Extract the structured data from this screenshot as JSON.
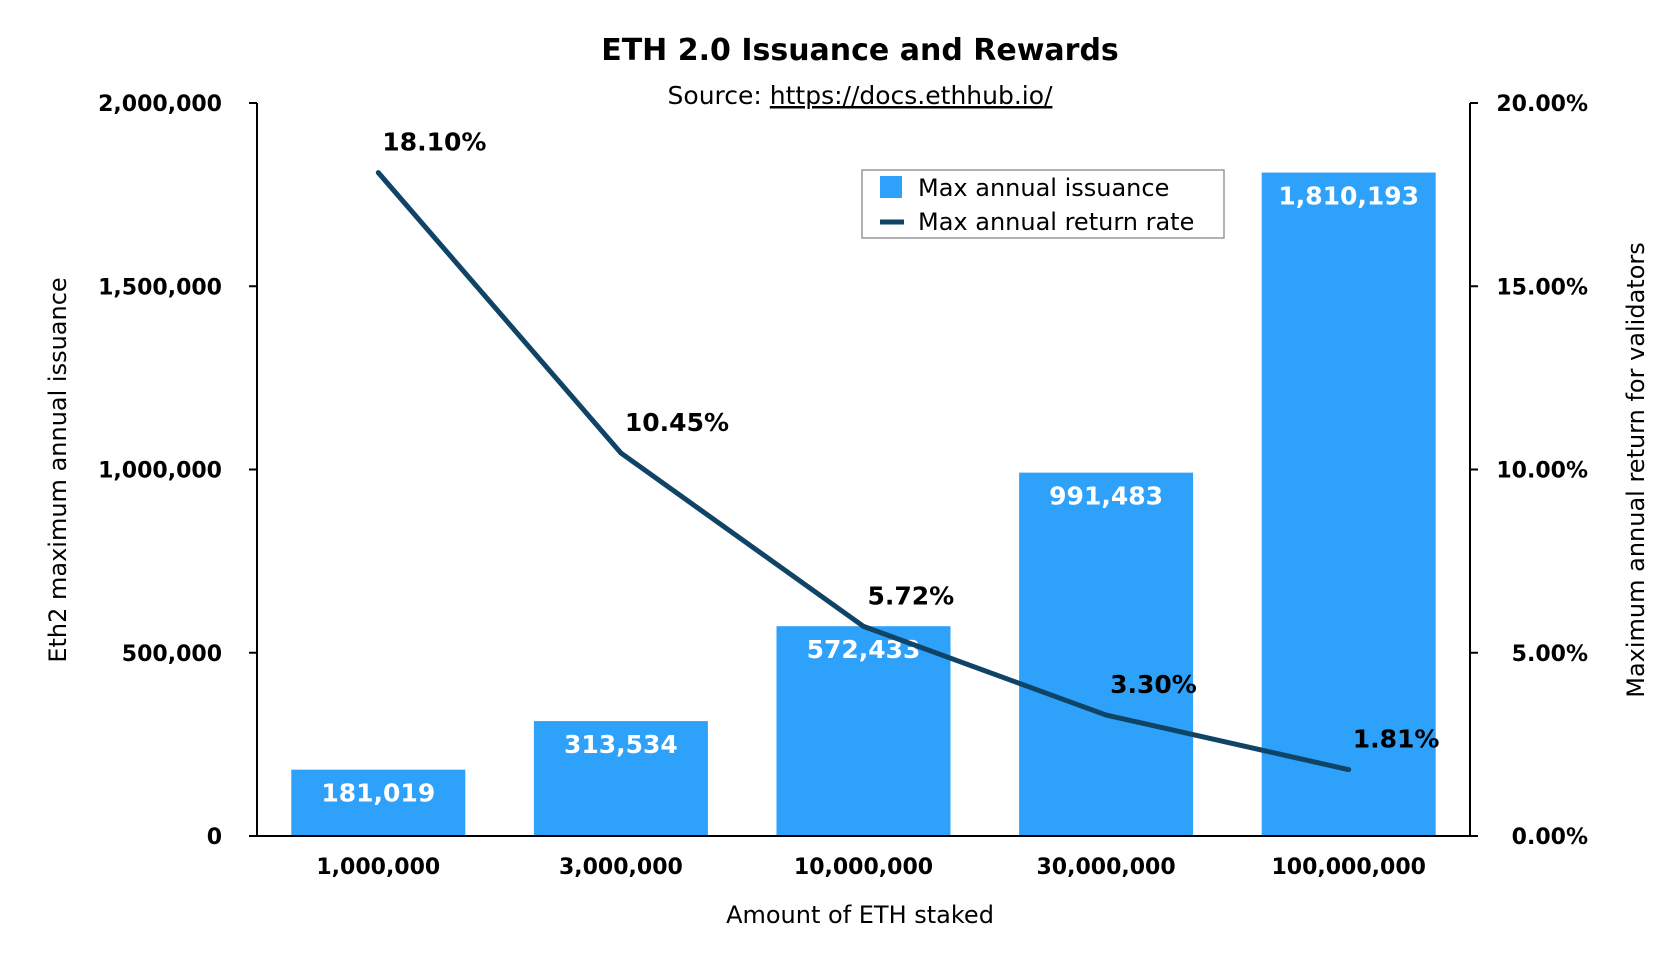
{
  "chart_data": {
    "type": "bar",
    "title": "ETH 2.0 Issuance and Rewards",
    "subtitle_prefix": "Source: ",
    "subtitle_link": "https://docs.ethhub.io/",
    "xlabel": "Amount of ETH staked",
    "ylabel": "Eth2 maximum annual issuance",
    "y2label": "Maximum annual return for validators",
    "categories": [
      "1,000,000",
      "3,000,000",
      "10,000,000",
      "30,000,000",
      "100,000,000"
    ],
    "ylim": [
      0,
      2000000
    ],
    "y2lim": [
      0,
      20
    ],
    "y_ticks": [
      "0",
      "500,000",
      "1,000,000",
      "1,500,000",
      "2,000,000"
    ],
    "y2_ticks": [
      "0.00%",
      "5.00%",
      "10.00%",
      "15.00%",
      "20.00%"
    ],
    "series": [
      {
        "name": "Max annual issuance",
        "type": "bar",
        "axis": "left",
        "color": "#2ea1fb",
        "values": [
          181019,
          313534,
          572433,
          991483,
          1810193
        ],
        "labels": [
          "181,019",
          "313,534",
          "572,433",
          "991,483",
          "1,810,193"
        ]
      },
      {
        "name": "Max annual return rate",
        "type": "line",
        "axis": "right",
        "color": "#0f4466",
        "values": [
          18.1,
          10.45,
          5.72,
          3.3,
          1.81
        ],
        "labels": [
          "18.10%",
          "10.45%",
          "5.72%",
          "3.30%",
          "1.81%"
        ]
      }
    ],
    "grid": false,
    "legend": "top-right"
  }
}
